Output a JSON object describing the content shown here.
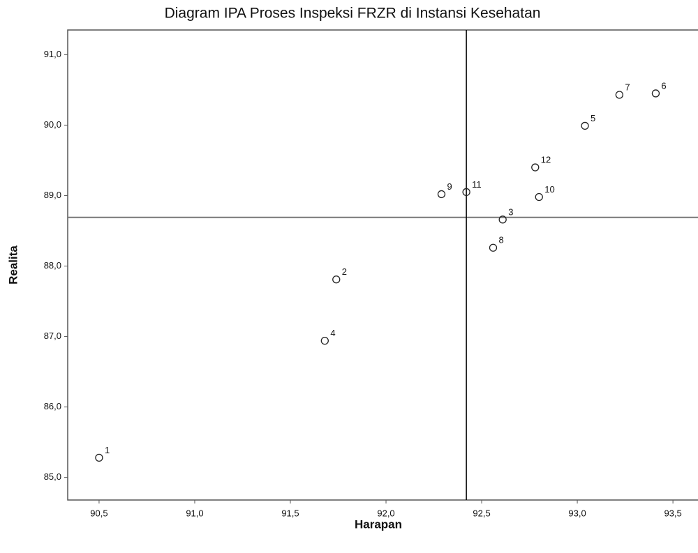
{
  "chart_data": {
    "type": "scatter",
    "title": "Diagram IPA Proses Inspeksi FRZR di Instansi Kesehatan",
    "xlabel": "Harapan",
    "ylabel": "Realita",
    "x": [
      90.5,
      91.74,
      92.61,
      91.68,
      93.04,
      93.41,
      93.22,
      92.56,
      92.29,
      92.8,
      92.42,
      92.78
    ],
    "values": [
      85.28,
      87.81,
      88.66,
      86.94,
      89.99,
      90.45,
      90.43,
      88.26,
      89.02,
      88.98,
      89.05,
      89.4
    ],
    "labels": [
      "1",
      "2",
      "3",
      "4",
      "5",
      "6",
      "7",
      "8",
      "9",
      "10",
      "11",
      "12"
    ],
    "color": "#222222",
    "xlim": [
      90.336,
      93.631
    ],
    "ylim": [
      84.68,
      91.35
    ],
    "xticks": [
      {
        "value": 90.5,
        "label": "90,5"
      },
      {
        "value": 91.0,
        "label": "91,0"
      },
      {
        "value": 91.5,
        "label": "91,5"
      },
      {
        "value": 92.0,
        "label": "92,0"
      },
      {
        "value": 92.5,
        "label": "92,5"
      },
      {
        "value": 93.0,
        "label": "93,0"
      },
      {
        "value": 93.5,
        "label": "93,5"
      }
    ],
    "yticks": [
      {
        "value": 85.0,
        "label": "85,0"
      },
      {
        "value": 86.0,
        "label": "86,0"
      },
      {
        "value": 87.0,
        "label": "87,0"
      },
      {
        "value": 88.0,
        "label": "88,0"
      },
      {
        "value": 89.0,
        "label": "89,0"
      },
      {
        "value": 90.0,
        "label": "90,0"
      },
      {
        "value": 91.0,
        "label": "91,0"
      }
    ],
    "reference_lines": {
      "x": 92.42,
      "x_color": "#000000",
      "y": 88.69,
      "y_color": "#777777"
    },
    "grid": false
  }
}
